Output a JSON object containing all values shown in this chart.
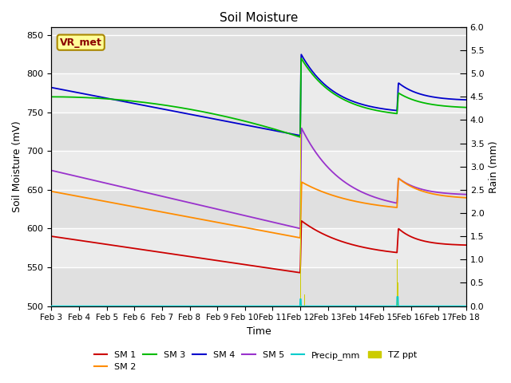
{
  "title": "Soil Moisture",
  "xlabel": "Time",
  "ylabel_left": "Soil Moisture (mV)",
  "ylabel_right": "Rain (mm)",
  "ylim_left": [
    500,
    860
  ],
  "ylim_right": [
    0.0,
    6.0
  ],
  "yticks_left": [
    500,
    550,
    600,
    650,
    700,
    750,
    800,
    850
  ],
  "yticks_right": [
    0.0,
    0.5,
    1.0,
    1.5,
    2.0,
    2.5,
    3.0,
    3.5,
    4.0,
    4.5,
    5.0,
    5.5,
    6.0
  ],
  "date_labels": [
    "Feb 3",
    "Feb 4",
    "Feb 5",
    "Feb 6",
    "Feb 7",
    "Feb 8",
    "Feb 9",
    "Feb 10",
    "Feb 11",
    "Feb 12",
    "Feb 13",
    "Feb 14",
    "Feb 15",
    "Feb 16",
    "Feb 17",
    "Feb 18"
  ],
  "n_points": 1500,
  "background_color": "#ffffff",
  "plot_bg_color": "#e0e0e0",
  "plot_bg_alt_color": "#ebebeb",
  "vr_met_box_facecolor": "#ffff99",
  "vr_met_box_edgecolor": "#aa8800",
  "vr_met_text_color": "#8b0000",
  "annotation_text": "VR_met",
  "series": {
    "SM1": {
      "color": "#cc0000",
      "label": "SM 1"
    },
    "SM2": {
      "color": "#ff8c00",
      "label": "SM 2"
    },
    "SM3": {
      "color": "#00bb00",
      "label": "SM 3"
    },
    "SM4": {
      "color": "#0000cc",
      "label": "SM 4"
    },
    "SM5": {
      "color": "#9932cc",
      "label": "SM 5"
    },
    "Precip_mm": {
      "color": "#00cccc",
      "label": "Precip_mm"
    },
    "TZ_ppt": {
      "color": "#cccc00",
      "label": "TZ ppt"
    }
  }
}
